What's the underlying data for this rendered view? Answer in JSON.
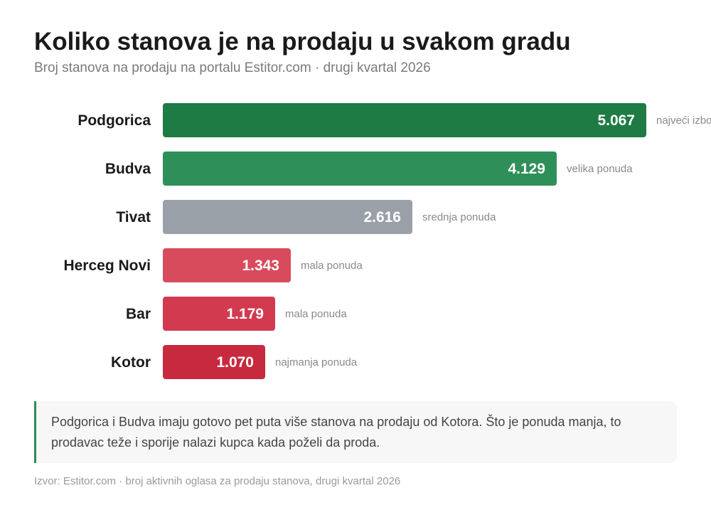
{
  "title": "Koliko stanova je na prodaju u svakom gradu",
  "subtitle": "Broj stanova na prodaju na portalu Estitor.com · drugi kvartal 2026",
  "chart_data": {
    "type": "bar",
    "orientation": "horizontal",
    "title": "Koliko stanova je na prodaju u svakom gradu",
    "subtitle": "Broj stanova na prodaju na portalu Estitor.com · drugi kvartal 2026",
    "categories": [
      "Podgorica",
      "Budva",
      "Tivat",
      "Herceg Novi",
      "Bar",
      "Kotor"
    ],
    "values": [
      5067,
      4129,
      2616,
      1343,
      1179,
      1070
    ],
    "value_labels": [
      "5.067",
      "4.129",
      "2.616",
      "1.343",
      "1.179",
      "1.070"
    ],
    "annotations": [
      "najveći izbor",
      "velika ponuda",
      "srednja ponuda",
      "mala ponuda",
      "mala ponuda",
      "najmanja ponuda"
    ],
    "colors": [
      "#1e7b43",
      "#2f8f58",
      "#9aa0a8",
      "#d84b5c",
      "#d13a4f",
      "#c72a3e"
    ],
    "grid": false,
    "legend": "none"
  },
  "note": "Podgorica i Budva imaju gotovo pet puta više stanova na prodaju od Kotora. Što je ponuda manja, to prodavac teže i sporije nalazi kupca kada poželi da proda.",
  "source": "Izvor: Estitor.com · broj aktivnih oglasa za prodaju stanova, drugi kvartal 2026",
  "colors": {
    "accent": "#2e8b57",
    "note_background": "#f7f7f7",
    "title": "#1a1a1a",
    "subtitle": "#7a7a7a",
    "annotation": "#8a8a8a"
  }
}
